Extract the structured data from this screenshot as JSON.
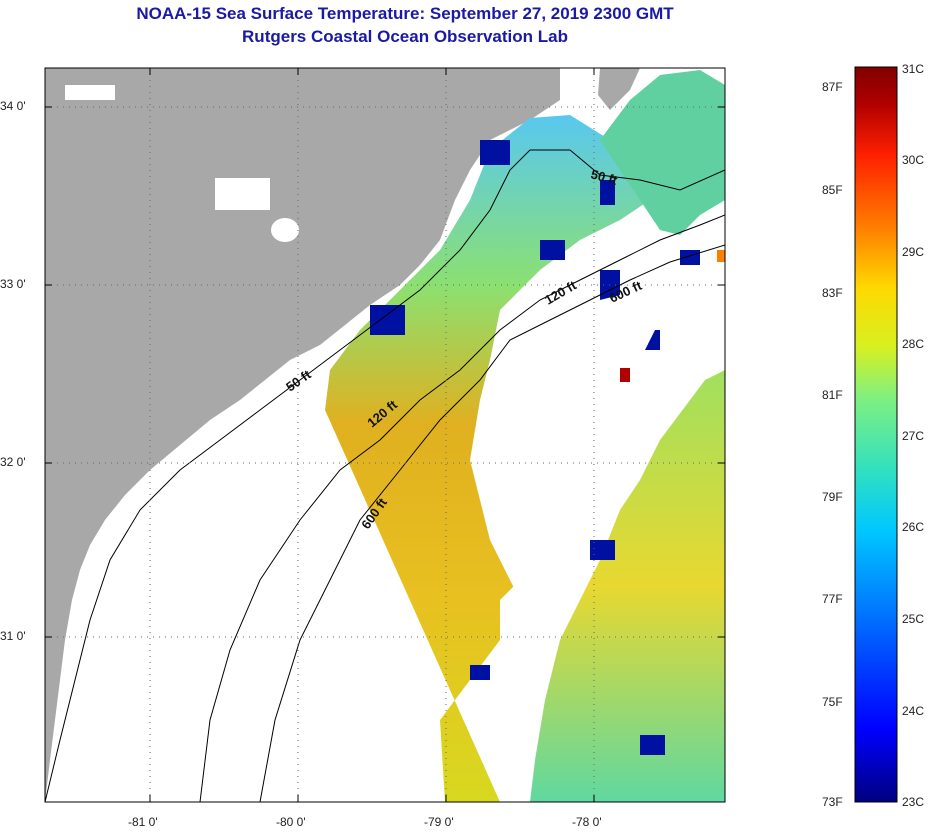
{
  "title": {
    "line1": "NOAA-15 Sea Surface Temperature:  September 27, 2019 2300 GMT",
    "line2": "Rutgers Coastal Ocean Observation Lab"
  },
  "map": {
    "lat_labels": [
      "34 0'",
      "33 0'",
      "32 0'",
      "31 0'"
    ],
    "lon_labels": [
      "-81 0'",
      "-80 0'",
      "-79 0'",
      "-78 0'"
    ],
    "contours": [
      "50 ft",
      "120 ft",
      "600 ft",
      "50 ft",
      "120 ft",
      "600 ft"
    ],
    "colors": {
      "land": "#a8a8a8",
      "cloud": "#ffffff",
      "frame": "#000000"
    }
  },
  "colorbar": {
    "fahrenheit_labels": [
      "87F",
      "85F",
      "83F",
      "81F",
      "79F",
      "77F",
      "75F",
      "73F"
    ],
    "celsius_labels": [
      "31C",
      "30C",
      "29C",
      "28C",
      "27C",
      "26C",
      "25C",
      "24C",
      "23C"
    ],
    "range_c": [
      23,
      31
    ],
    "colors": [
      "#000080",
      "#0000ff",
      "#0070ff",
      "#00c8ff",
      "#30e0c0",
      "#80f080",
      "#d8f020",
      "#ffd800",
      "#ff8000",
      "#ff2000",
      "#b00000",
      "#800000"
    ]
  }
}
